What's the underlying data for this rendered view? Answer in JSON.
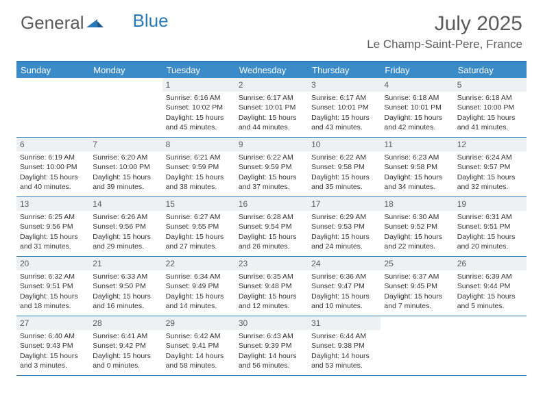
{
  "logo": {
    "text1": "General",
    "text2": "Blue"
  },
  "title": "July 2025",
  "location": "Le Champ-Saint-Pere, France",
  "colors": {
    "header_bg": "#3b8bc8",
    "border": "#2a7ab8",
    "daynum_bg": "#eef1f4",
    "text": "#333333",
    "muted": "#5a5a5a"
  },
  "day_headers": [
    "Sunday",
    "Monday",
    "Tuesday",
    "Wednesday",
    "Thursday",
    "Friday",
    "Saturday"
  ],
  "weeks": [
    [
      null,
      null,
      {
        "n": "1",
        "sr": "Sunrise: 6:16 AM",
        "ss": "Sunset: 10:02 PM",
        "dl": "Daylight: 15 hours and 45 minutes."
      },
      {
        "n": "2",
        "sr": "Sunrise: 6:17 AM",
        "ss": "Sunset: 10:01 PM",
        "dl": "Daylight: 15 hours and 44 minutes."
      },
      {
        "n": "3",
        "sr": "Sunrise: 6:17 AM",
        "ss": "Sunset: 10:01 PM",
        "dl": "Daylight: 15 hours and 43 minutes."
      },
      {
        "n": "4",
        "sr": "Sunrise: 6:18 AM",
        "ss": "Sunset: 10:01 PM",
        "dl": "Daylight: 15 hours and 42 minutes."
      },
      {
        "n": "5",
        "sr": "Sunrise: 6:18 AM",
        "ss": "Sunset: 10:00 PM",
        "dl": "Daylight: 15 hours and 41 minutes."
      }
    ],
    [
      {
        "n": "6",
        "sr": "Sunrise: 6:19 AM",
        "ss": "Sunset: 10:00 PM",
        "dl": "Daylight: 15 hours and 40 minutes."
      },
      {
        "n": "7",
        "sr": "Sunrise: 6:20 AM",
        "ss": "Sunset: 10:00 PM",
        "dl": "Daylight: 15 hours and 39 minutes."
      },
      {
        "n": "8",
        "sr": "Sunrise: 6:21 AM",
        "ss": "Sunset: 9:59 PM",
        "dl": "Daylight: 15 hours and 38 minutes."
      },
      {
        "n": "9",
        "sr": "Sunrise: 6:22 AM",
        "ss": "Sunset: 9:59 PM",
        "dl": "Daylight: 15 hours and 37 minutes."
      },
      {
        "n": "10",
        "sr": "Sunrise: 6:22 AM",
        "ss": "Sunset: 9:58 PM",
        "dl": "Daylight: 15 hours and 35 minutes."
      },
      {
        "n": "11",
        "sr": "Sunrise: 6:23 AM",
        "ss": "Sunset: 9:58 PM",
        "dl": "Daylight: 15 hours and 34 minutes."
      },
      {
        "n": "12",
        "sr": "Sunrise: 6:24 AM",
        "ss": "Sunset: 9:57 PM",
        "dl": "Daylight: 15 hours and 32 minutes."
      }
    ],
    [
      {
        "n": "13",
        "sr": "Sunrise: 6:25 AM",
        "ss": "Sunset: 9:56 PM",
        "dl": "Daylight: 15 hours and 31 minutes."
      },
      {
        "n": "14",
        "sr": "Sunrise: 6:26 AM",
        "ss": "Sunset: 9:56 PM",
        "dl": "Daylight: 15 hours and 29 minutes."
      },
      {
        "n": "15",
        "sr": "Sunrise: 6:27 AM",
        "ss": "Sunset: 9:55 PM",
        "dl": "Daylight: 15 hours and 27 minutes."
      },
      {
        "n": "16",
        "sr": "Sunrise: 6:28 AM",
        "ss": "Sunset: 9:54 PM",
        "dl": "Daylight: 15 hours and 26 minutes."
      },
      {
        "n": "17",
        "sr": "Sunrise: 6:29 AM",
        "ss": "Sunset: 9:53 PM",
        "dl": "Daylight: 15 hours and 24 minutes."
      },
      {
        "n": "18",
        "sr": "Sunrise: 6:30 AM",
        "ss": "Sunset: 9:52 PM",
        "dl": "Daylight: 15 hours and 22 minutes."
      },
      {
        "n": "19",
        "sr": "Sunrise: 6:31 AM",
        "ss": "Sunset: 9:51 PM",
        "dl": "Daylight: 15 hours and 20 minutes."
      }
    ],
    [
      {
        "n": "20",
        "sr": "Sunrise: 6:32 AM",
        "ss": "Sunset: 9:51 PM",
        "dl": "Daylight: 15 hours and 18 minutes."
      },
      {
        "n": "21",
        "sr": "Sunrise: 6:33 AM",
        "ss": "Sunset: 9:50 PM",
        "dl": "Daylight: 15 hours and 16 minutes."
      },
      {
        "n": "22",
        "sr": "Sunrise: 6:34 AM",
        "ss": "Sunset: 9:49 PM",
        "dl": "Daylight: 15 hours and 14 minutes."
      },
      {
        "n": "23",
        "sr": "Sunrise: 6:35 AM",
        "ss": "Sunset: 9:48 PM",
        "dl": "Daylight: 15 hours and 12 minutes."
      },
      {
        "n": "24",
        "sr": "Sunrise: 6:36 AM",
        "ss": "Sunset: 9:47 PM",
        "dl": "Daylight: 15 hours and 10 minutes."
      },
      {
        "n": "25",
        "sr": "Sunrise: 6:37 AM",
        "ss": "Sunset: 9:45 PM",
        "dl": "Daylight: 15 hours and 7 minutes."
      },
      {
        "n": "26",
        "sr": "Sunrise: 6:39 AM",
        "ss": "Sunset: 9:44 PM",
        "dl": "Daylight: 15 hours and 5 minutes."
      }
    ],
    [
      {
        "n": "27",
        "sr": "Sunrise: 6:40 AM",
        "ss": "Sunset: 9:43 PM",
        "dl": "Daylight: 15 hours and 3 minutes."
      },
      {
        "n": "28",
        "sr": "Sunrise: 6:41 AM",
        "ss": "Sunset: 9:42 PM",
        "dl": "Daylight: 15 hours and 0 minutes."
      },
      {
        "n": "29",
        "sr": "Sunrise: 6:42 AM",
        "ss": "Sunset: 9:41 PM",
        "dl": "Daylight: 14 hours and 58 minutes."
      },
      {
        "n": "30",
        "sr": "Sunrise: 6:43 AM",
        "ss": "Sunset: 9:39 PM",
        "dl": "Daylight: 14 hours and 56 minutes."
      },
      {
        "n": "31",
        "sr": "Sunrise: 6:44 AM",
        "ss": "Sunset: 9:38 PM",
        "dl": "Daylight: 14 hours and 53 minutes."
      },
      null,
      null
    ]
  ]
}
